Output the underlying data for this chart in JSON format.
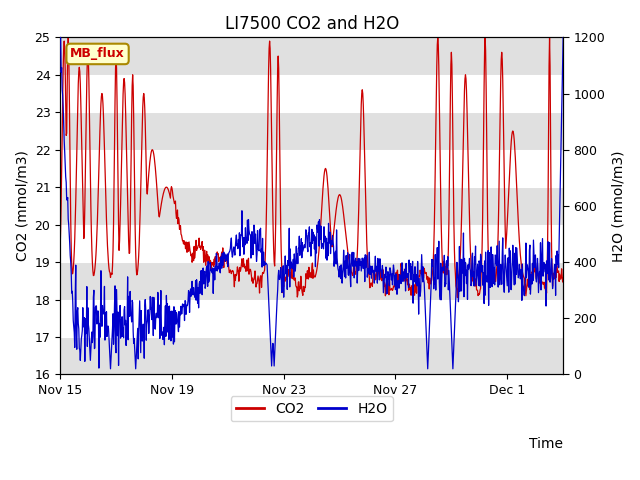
{
  "title": "LI7500 CO2 and H2O",
  "xlabel": "Time",
  "ylabel_left": "CO2 (mmol/m3)",
  "ylabel_right": "H2O (mmol/m3)",
  "ylim_left": [
    16.0,
    25.0
  ],
  "ylim_right": [
    0,
    1200
  ],
  "yticks_left": [
    16.0,
    17.0,
    18.0,
    19.0,
    20.0,
    21.0,
    22.0,
    23.0,
    24.0,
    25.0
  ],
  "yticks_right": [
    0,
    200,
    400,
    600,
    800,
    1000,
    1200
  ],
  "xtick_positions": [
    0,
    4,
    8,
    12,
    16
  ],
  "xtick_labels": [
    "Nov 15",
    "Nov 19",
    "Nov 23",
    "Nov 27",
    "Dec 1"
  ],
  "co2_color": "#cc0000",
  "h2o_color": "#0000cc",
  "annotation_text": "MB_flux",
  "annotation_bg": "#ffffcc",
  "annotation_border": "#aa8800",
  "bg_color": "#ffffff",
  "plot_bg_color": "#ffffff",
  "stripe_color": "#e0e0e0",
  "title_fontsize": 12,
  "label_fontsize": 10,
  "tick_fontsize": 9,
  "legend_fontsize": 10,
  "xlim": [
    0,
    18
  ]
}
